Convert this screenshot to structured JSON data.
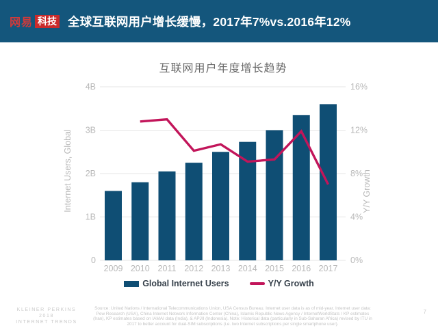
{
  "header": {
    "logo_brand": "网易",
    "logo_sub": "科技",
    "title": "全球互联网用户增长缓慢，2017年7%vs.2016年12%",
    "bar_color": "#14567c",
    "logo_red": "#cb2b2b",
    "logo_brand_red": "#d03a3a"
  },
  "chart_data": {
    "type": "bar",
    "title": "互联网用户年度增长趋势",
    "categories": [
      "2009",
      "2010",
      "2011",
      "2012",
      "2013",
      "2014",
      "2015",
      "2016",
      "2017"
    ],
    "series": [
      {
        "name": "Global Internet Users",
        "type": "bar",
        "axis": "left",
        "unit": "B users",
        "color": "#0f4e74",
        "values": [
          1.6,
          1.8,
          2.05,
          2.25,
          2.5,
          2.73,
          3.0,
          3.35,
          3.6
        ]
      },
      {
        "name": "Y/Y Growth",
        "type": "line",
        "axis": "right",
        "unit": "%",
        "color": "#c2155a",
        "values": [
          null,
          12.8,
          13.0,
          10.1,
          10.7,
          9.1,
          9.3,
          11.9,
          7.0
        ]
      }
    ],
    "left_axis": {
      "label": "Internet Users, Global",
      "ticks": [
        "0",
        "1B",
        "2B",
        "3B",
        "4B"
      ],
      "min": 0,
      "max": 4
    },
    "right_axis": {
      "label": "Y/Y Growth",
      "ticks": [
        "0%",
        "4%",
        "8%",
        "12%",
        "16%"
      ],
      "min": 0,
      "max": 16
    },
    "grid": true,
    "legend_position": "bottom",
    "tick_color": "#b8b8b8",
    "grid_color": "#e4e4e4"
  },
  "legend": [
    {
      "label": "Global Internet Users",
      "color": "#0f4e74",
      "marker": "square"
    },
    {
      "label": "Y/Y Growth",
      "color": "#c2155a",
      "marker": "line"
    }
  ],
  "footer": {
    "brand_line1": "KLEINER PERKINS",
    "brand_line2": "2018",
    "brand_line3": "INTERNET TRENDS",
    "source": "Source: United Nations / International Telecommunications Union, USA Census Bureau. Internet user data is as of mid-year. Internet user data: Pew Research (USA), China Internet Network Information Center (China), Islamic Republic News Agency / InternetWorldStats / KP estimates (Iran), KP estimates based on IAMAI data (India), & APJII (Indonesia). Note: Historical data (particularly in Sub-Saharan Africa) revised by ITU in 2017 to better account for dual-SIM subscriptions (i.e. two Internet subscriptions per single smartphone user).",
    "page_number": "7"
  }
}
